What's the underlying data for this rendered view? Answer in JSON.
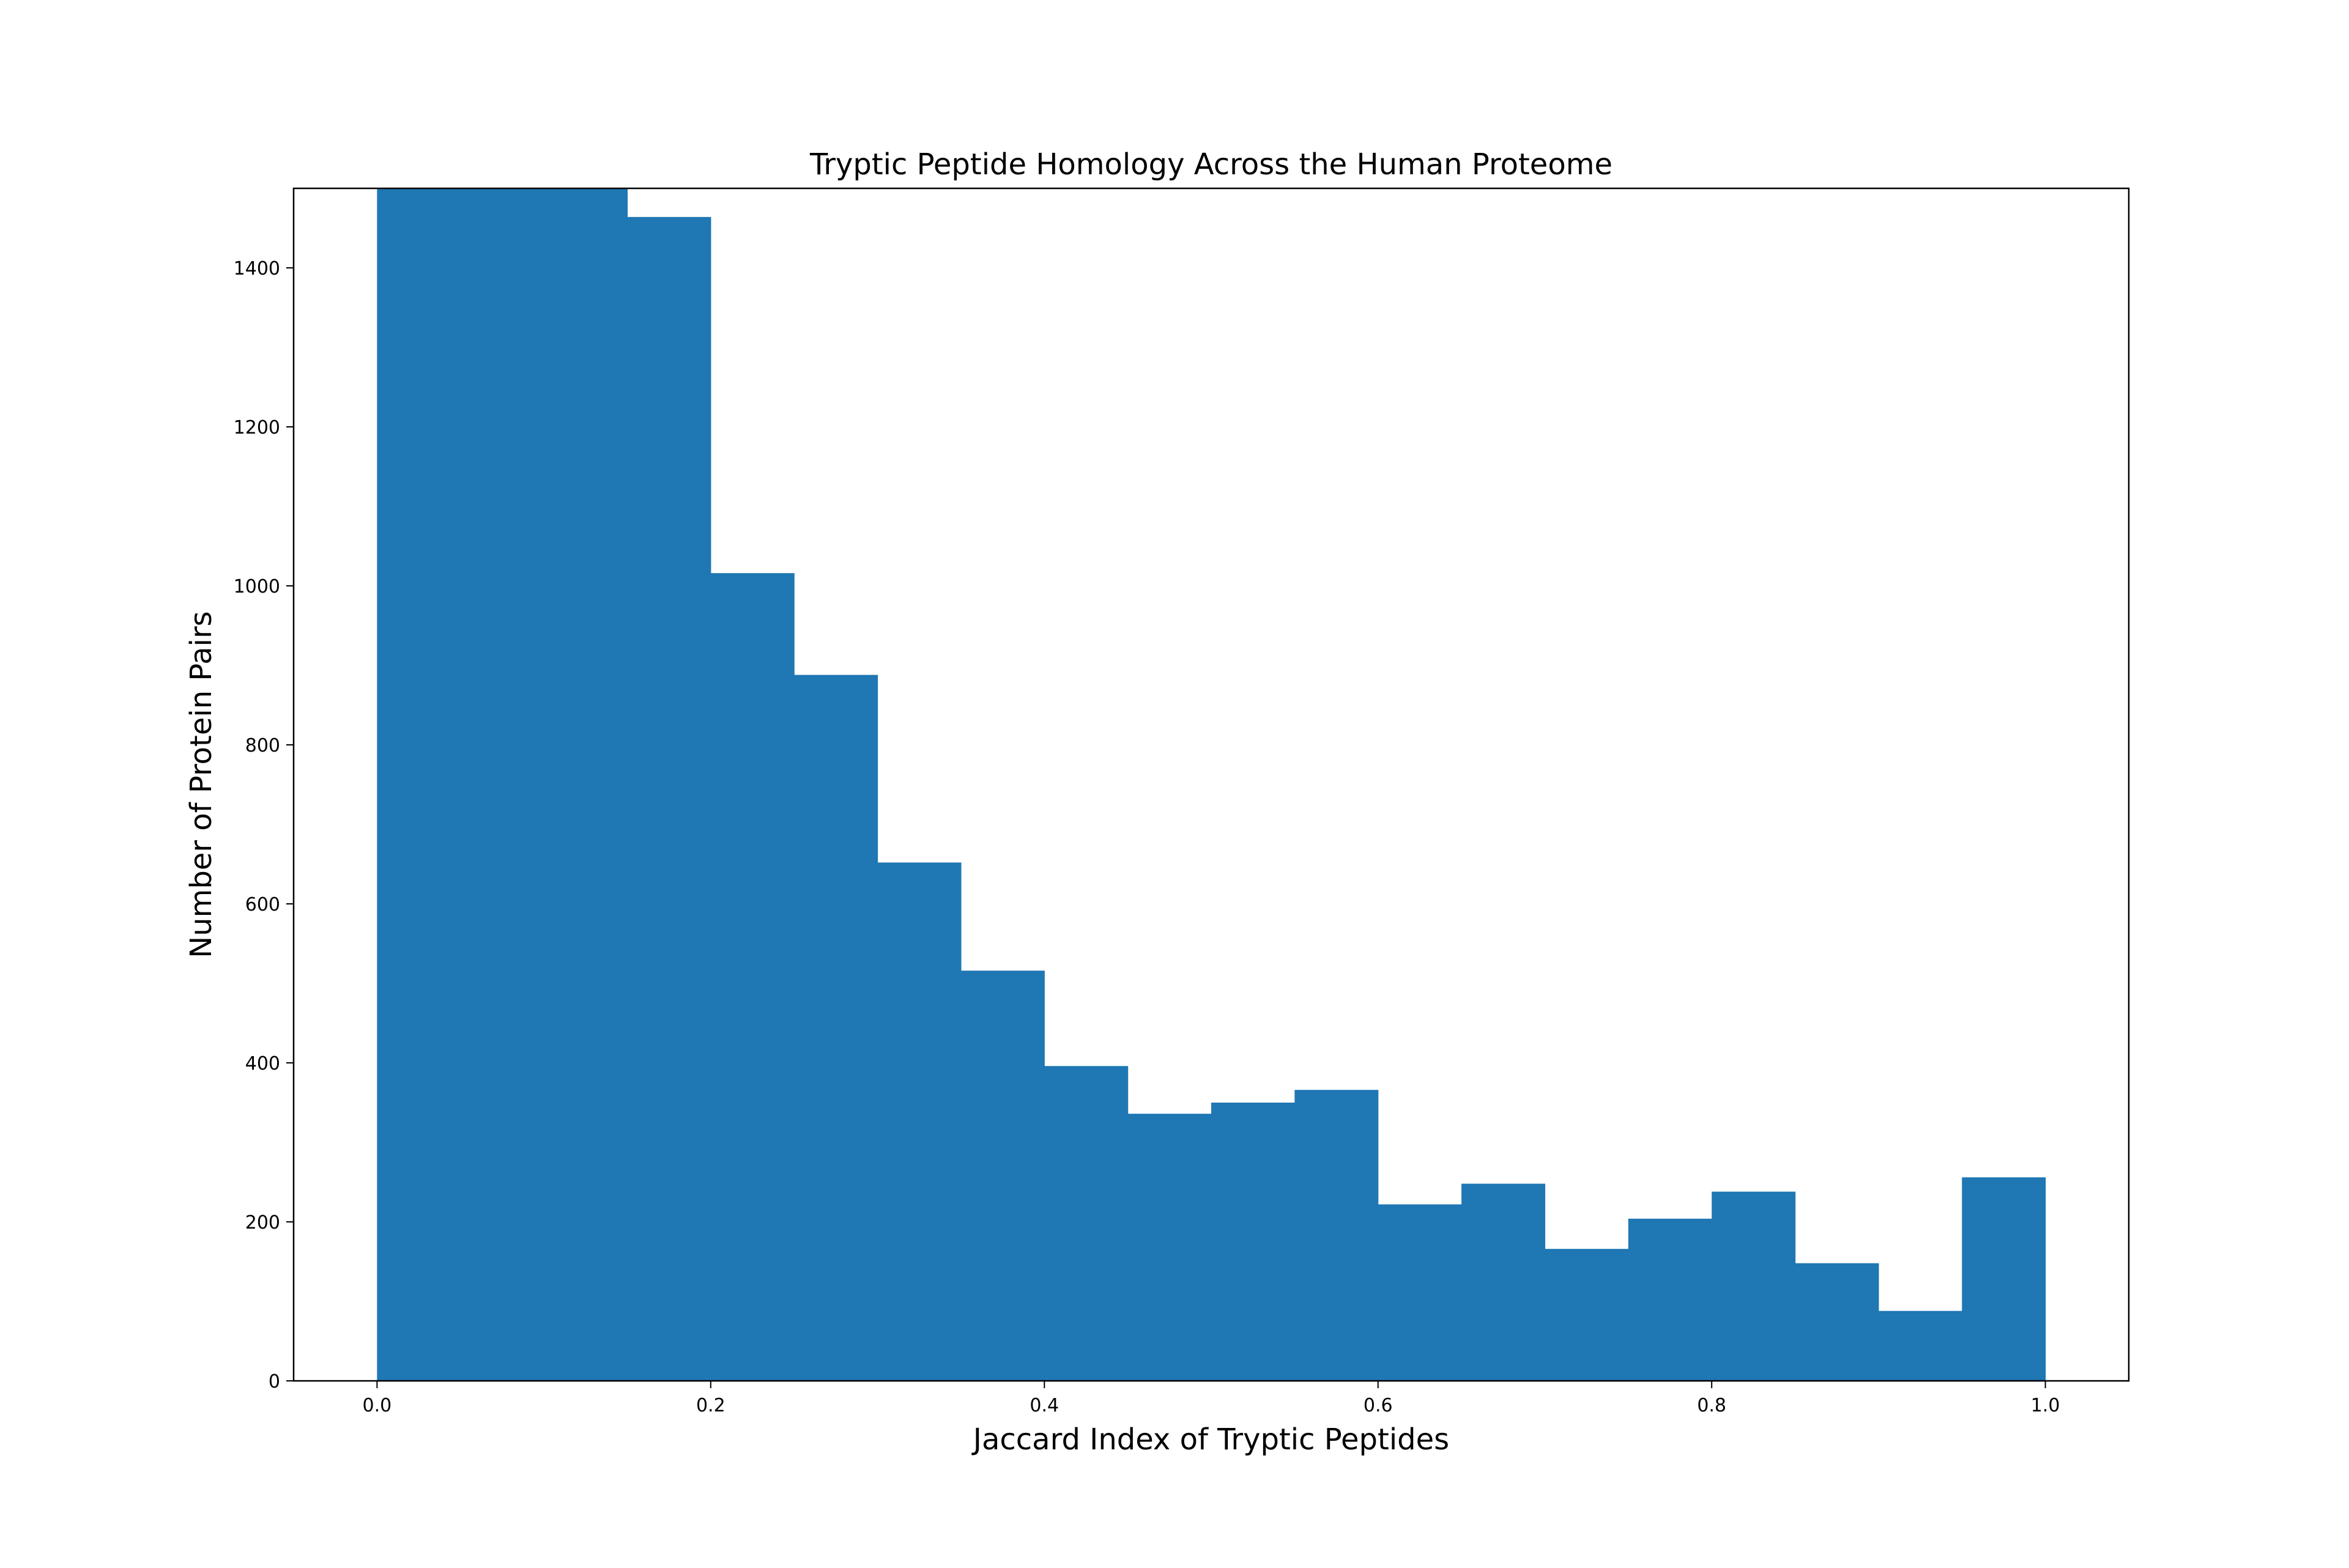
{
  "chart_data": {
    "type": "bar",
    "title": "Tryptic Peptide Homology Across the Human Proteome",
    "xlabel": "Jaccard Index of Tryptic Peptides",
    "ylabel": "Number of Protein Pairs",
    "xlim": [
      -0.05,
      1.05
    ],
    "ylim": [
      0,
      1500
    ],
    "bin_width": 0.05,
    "bin_edges": [
      0.0,
      0.05,
      0.1,
      0.15,
      0.2,
      0.25,
      0.3,
      0.35,
      0.4,
      0.45,
      0.5,
      0.55,
      0.6,
      0.65,
      0.7,
      0.75,
      0.8,
      0.85,
      0.9,
      0.95,
      1.0
    ],
    "values": [
      1500,
      1500,
      1500,
      1464,
      1016,
      888,
      652,
      516,
      396,
      336,
      350,
      366,
      222,
      248,
      166,
      204,
      238,
      148,
      88,
      256
    ],
    "clipped_above_ylim": [
      true,
      true,
      true,
      false,
      false,
      false,
      false,
      false,
      false,
      false,
      false,
      false,
      false,
      false,
      false,
      false,
      false,
      false,
      false,
      false
    ],
    "x_ticks": [
      0.0,
      0.2,
      0.4,
      0.6,
      0.8,
      1.0
    ],
    "x_tick_labels": [
      "0.0",
      "0.2",
      "0.4",
      "0.6",
      "0.8",
      "1.0"
    ],
    "y_ticks": [
      0,
      200,
      400,
      600,
      800,
      1000,
      1200,
      1400
    ],
    "y_tick_labels": [
      "0",
      "200",
      "400",
      "600",
      "800",
      "1000",
      "1200",
      "1400"
    ],
    "grid": false,
    "legend": "none",
    "bar_color": "#1f77b4"
  }
}
